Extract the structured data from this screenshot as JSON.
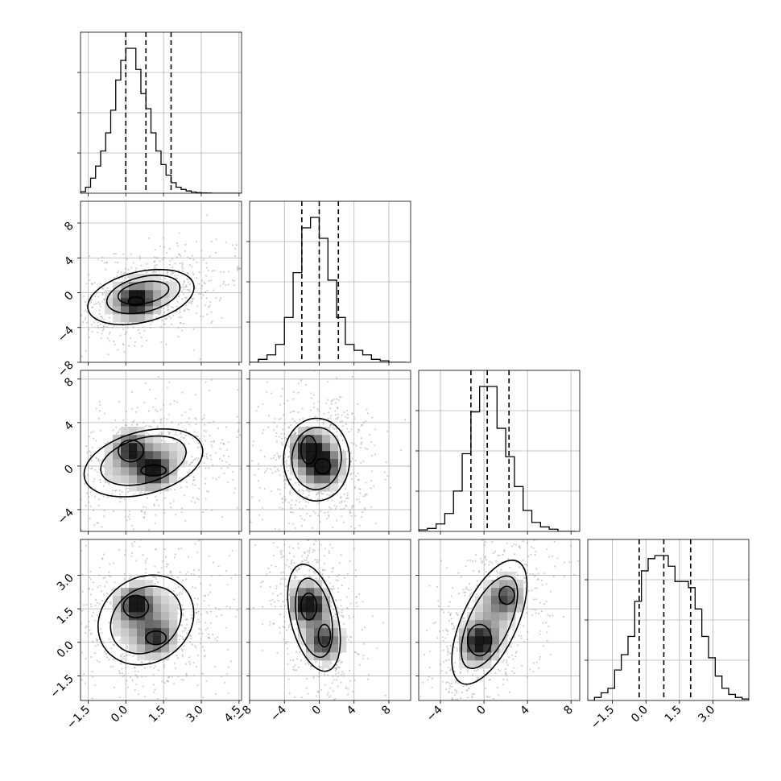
{
  "chart_data": {
    "type": "corner",
    "n_params": 4,
    "grid": true,
    "hist_color": "#000000",
    "quantile_line_style": "dashed",
    "params": [
      {
        "range": [
          -1.8,
          4.6
        ],
        "ticks": [
          -1.5,
          0.0,
          1.5,
          3.0,
          4.5
        ],
        "tick_labels": [
          "−1.5",
          "0.0",
          "1.5",
          "3.0",
          "4.5"
        ],
        "quantiles": [
          0.0,
          0.8,
          1.8
        ]
      },
      {
        "range": [
          -8,
          10.5
        ],
        "ticks": [
          -8,
          -4,
          0,
          4,
          8
        ],
        "tick_labels": [
          "−8",
          "−4",
          "0",
          "4",
          "8"
        ],
        "quantiles": [
          -2.0,
          0.0,
          2.2
        ]
      },
      {
        "range": [
          -6,
          8.8
        ],
        "ticks": [
          -4,
          0,
          4,
          8
        ],
        "tick_labels": [
          "−4",
          "0",
          "4",
          "8"
        ],
        "quantiles": [
          -1.2,
          0.3,
          2.3
        ]
      },
      {
        "range": [
          -2.6,
          4.6
        ],
        "ticks": [
          -1.5,
          0.0,
          1.5,
          3.0
        ],
        "tick_labels": [
          "−1.5",
          "0.0",
          "1.5",
          "3.0"
        ],
        "quantiles": [
          -0.3,
          0.8,
          2.0
        ]
      }
    ],
    "diag_y_tick_fractions": [
      0.25,
      0.5,
      0.75
    ],
    "histograms": [
      {
        "bins": [
          -1.8,
          -1.6,
          -1.4,
          -1.2,
          -1.0,
          -0.8,
          -0.6,
          -0.4,
          -0.2,
          0.0,
          0.2,
          0.4,
          0.6,
          0.8,
          1.0,
          1.2,
          1.4,
          1.6,
          1.8,
          2.0,
          2.2,
          2.4,
          2.6,
          2.8,
          3.0,
          3.2,
          3.4,
          3.6,
          3.8,
          4.0,
          4.2,
          4.4,
          4.6
        ],
        "counts": [
          0.01,
          0.04,
          0.1,
          0.18,
          0.28,
          0.4,
          0.55,
          0.75,
          0.88,
          0.96,
          0.96,
          0.82,
          0.66,
          0.56,
          0.4,
          0.28,
          0.19,
          0.12,
          0.07,
          0.04,
          0.025,
          0.015,
          0.008,
          0.004,
          0.002,
          0.001,
          0.0,
          0.0,
          0.0,
          0.0,
          0.0,
          0.0
        ]
      },
      {
        "bins": [
          -8,
          -7,
          -6,
          -5,
          -4,
          -3,
          -2,
          -1,
          0,
          1,
          2,
          3,
          4,
          5,
          6,
          7,
          8,
          9,
          10
        ],
        "counts": [
          0.0,
          0.02,
          0.05,
          0.12,
          0.3,
          0.6,
          0.9,
          0.97,
          0.83,
          0.55,
          0.3,
          0.12,
          0.08,
          0.05,
          0.02,
          0.01,
          0.0,
          0.0
        ]
      },
      {
        "bins": [
          -6,
          -5.2,
          -4.4,
          -3.6,
          -2.8,
          -2.0,
          -1.2,
          -0.4,
          0.4,
          1.2,
          2.0,
          2.8,
          3.6,
          4.4,
          5.2,
          6.0,
          6.8,
          7.6,
          8.4
        ],
        "counts": [
          0.01,
          0.02,
          0.05,
          0.12,
          0.27,
          0.52,
          0.8,
          0.97,
          0.97,
          0.69,
          0.5,
          0.3,
          0.14,
          0.06,
          0.03,
          0.015,
          0.0,
          0.0
        ]
      },
      {
        "bins": [
          -2.6,
          -2.3,
          -2.0,
          -1.7,
          -1.4,
          -1.1,
          -0.8,
          -0.5,
          -0.2,
          0.1,
          0.4,
          0.7,
          1.0,
          1.3,
          1.6,
          1.9,
          2.2,
          2.5,
          2.8,
          3.1,
          3.4,
          3.7,
          4.0,
          4.3,
          4.6
        ],
        "counts": [
          0.0,
          0.02,
          0.05,
          0.08,
          0.2,
          0.3,
          0.42,
          0.65,
          0.85,
          0.93,
          0.95,
          0.95,
          0.88,
          0.78,
          0.78,
          0.74,
          0.6,
          0.42,
          0.28,
          0.16,
          0.08,
          0.04,
          0.02,
          0.01
        ]
      }
    ],
    "pairs": [
      {
        "x_param": 0,
        "y_param": 1,
        "peaks": [
          {
            "x": 0.4,
            "y": -1.0,
            "level": 1.0
          }
        ],
        "contours": [
          {
            "cx": 0.6,
            "cy": -0.5,
            "rx": 1.9,
            "ry": 3.3,
            "rot": -20
          },
          {
            "cx": 0.7,
            "cy": -0.2,
            "rx": 1.3,
            "ry": 2.3,
            "rot": -20
          },
          {
            "cx": 0.7,
            "cy": 0.0,
            "rx": 0.9,
            "ry": 1.4,
            "rot": -25
          },
          {
            "cx": 0.4,
            "cy": -1.0,
            "rx": 0.3,
            "ry": 0.5,
            "rot": 0
          }
        ]
      },
      {
        "x_param": 0,
        "y_param": 2,
        "peaks": [
          {
            "x": 0.2,
            "y": 1.6,
            "level": 0.85
          },
          {
            "x": 1.1,
            "y": -0.4,
            "level": 1.0
          }
        ],
        "contours": [
          {
            "cx": 0.7,
            "cy": 0.3,
            "rx": 2.1,
            "ry": 3.3,
            "rot": -25
          },
          {
            "cx": 0.7,
            "cy": 0.5,
            "rx": 1.5,
            "ry": 2.4,
            "rot": -25
          },
          {
            "cx": 0.2,
            "cy": 1.4,
            "rx": 0.5,
            "ry": 1.0,
            "rot": 0
          },
          {
            "cx": 1.1,
            "cy": -0.4,
            "rx": 0.5,
            "ry": 0.5,
            "rot": 0
          }
        ]
      },
      {
        "x_param": 1,
        "y_param": 2,
        "peaks": [
          {
            "x": -1.2,
            "y": 1.6,
            "level": 0.9
          },
          {
            "x": 0.4,
            "y": 0.0,
            "level": 1.0
          }
        ],
        "contours": [
          {
            "cx": -0.3,
            "cy": 0.6,
            "rx": 3.8,
            "ry": 3.8,
            "rot": -40
          },
          {
            "cx": -0.3,
            "cy": 0.7,
            "rx": 2.8,
            "ry": 2.9,
            "rot": -40
          },
          {
            "cx": -1.2,
            "cy": 1.5,
            "rx": 0.9,
            "ry": 1.3,
            "rot": 0
          },
          {
            "cx": 0.4,
            "cy": 0.0,
            "rx": 0.9,
            "ry": 0.7,
            "rot": 0
          }
        ]
      },
      {
        "x_param": 0,
        "y_param": 3,
        "peaks": [
          {
            "x": 0.4,
            "y": 1.7,
            "level": 1.0
          },
          {
            "x": 1.2,
            "y": 0.2,
            "level": 0.75
          }
        ],
        "contours": [
          {
            "cx": 0.8,
            "cy": 1.0,
            "rx": 1.8,
            "ry": 2.1,
            "rot": -35
          },
          {
            "cx": 0.8,
            "cy": 1.0,
            "rx": 1.3,
            "ry": 1.6,
            "rot": -35
          },
          {
            "cx": 0.4,
            "cy": 1.6,
            "rx": 0.5,
            "ry": 0.5,
            "rot": 0
          },
          {
            "cx": 1.2,
            "cy": 0.2,
            "rx": 0.4,
            "ry": 0.3,
            "rot": 0
          }
        ]
      },
      {
        "x_param": 1,
        "y_param": 3,
        "peaks": [
          {
            "x": -1.2,
            "y": 1.7,
            "level": 1.0
          },
          {
            "x": 0.6,
            "y": 0.0,
            "level": 0.7
          }
        ],
        "contours": [
          {
            "cx": -0.6,
            "cy": 1.1,
            "rx": 3.3,
            "ry": 2.0,
            "rot": -30
          },
          {
            "cx": -0.6,
            "cy": 1.1,
            "rx": 2.3,
            "ry": 1.55,
            "rot": -30
          },
          {
            "cx": -1.2,
            "cy": 1.6,
            "rx": 0.9,
            "ry": 0.6,
            "rot": 0
          },
          {
            "cx": 0.6,
            "cy": 0.3,
            "rx": 0.7,
            "ry": 0.5,
            "rot": 0
          }
        ]
      },
      {
        "x_param": 2,
        "y_param": 3,
        "peaks": [
          {
            "x": -0.4,
            "y": 0.0,
            "level": 1.0
          },
          {
            "x": 2.0,
            "y": 2.0,
            "level": 0.6
          }
        ],
        "contours": [
          {
            "cx": 0.5,
            "cy": 0.9,
            "rx": 4.0,
            "ry": 1.9,
            "rot": 35
          },
          {
            "cx": 0.5,
            "cy": 0.9,
            "rx": 3.0,
            "ry": 1.4,
            "rot": 35
          },
          {
            "cx": -0.4,
            "cy": 0.1,
            "rx": 1.1,
            "ry": 0.7,
            "rot": 0
          },
          {
            "cx": 2.1,
            "cy": 2.1,
            "rx": 0.7,
            "ry": 0.4,
            "rot": 0
          }
        ]
      }
    ]
  }
}
